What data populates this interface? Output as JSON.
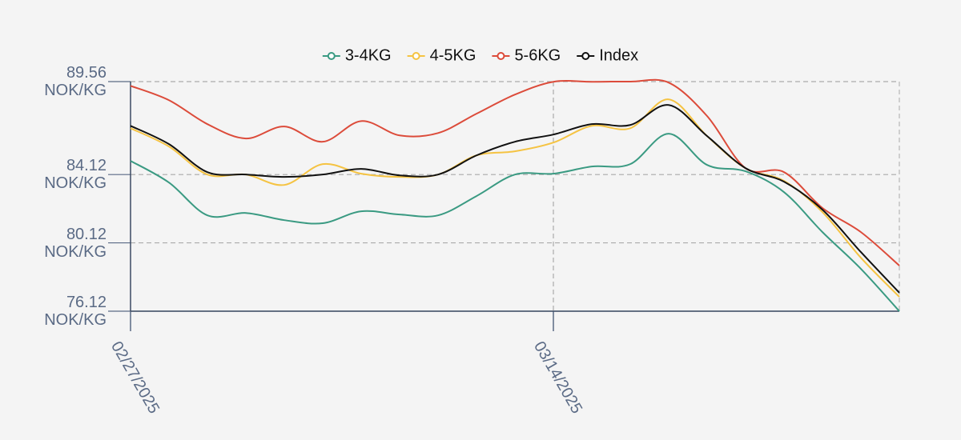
{
  "chart_data": {
    "type": "line",
    "categories": [
      "02/27/2025",
      null,
      null,
      null,
      null,
      null,
      null,
      null,
      null,
      null,
      null,
      "03/14/2025",
      null,
      null,
      null,
      null,
      null,
      null,
      null,
      null,
      null
    ],
    "series": [
      {
        "name": "3-4KG",
        "color": "#3a9a82",
        "values": [
          84.92,
          83.65,
          81.73,
          81.87,
          81.45,
          81.27,
          81.97,
          81.78,
          81.73,
          82.86,
          84.12,
          84.17,
          84.59,
          84.73,
          86.51,
          84.68,
          84.31,
          83.09,
          80.75,
          78.6,
          76.12
        ]
      },
      {
        "name": "4-5KG",
        "color": "#f5c342",
        "values": [
          86.83,
          85.76,
          84.12,
          84.12,
          83.51,
          84.73,
          84.17,
          83.98,
          84.12,
          85.24,
          85.48,
          85.99,
          86.97,
          86.83,
          88.52,
          86.37,
          84.49,
          83.75,
          81.92,
          79.25,
          76.96
        ]
      },
      {
        "name": "5-6KG",
        "color": "#dc4b3a",
        "values": [
          89.31,
          88.47,
          87.07,
          86.23,
          86.93,
          86.04,
          87.25,
          86.41,
          86.55,
          87.68,
          88.8,
          89.55,
          89.55,
          89.56,
          89.5,
          87.54,
          84.49,
          84.26,
          82.16,
          80.75,
          78.79
        ]
      },
      {
        "name": "Index",
        "color": "#111111",
        "values": [
          86.97,
          85.9,
          84.26,
          84.12,
          83.98,
          84.12,
          84.45,
          84.07,
          84.12,
          85.24,
          86.04,
          86.46,
          87.07,
          87.02,
          88.19,
          86.37,
          84.49,
          83.7,
          82.06,
          79.58,
          77.2
        ]
      }
    ],
    "ylim": [
      76.12,
      89.56
    ],
    "yticks": [
      {
        "value": 76.12,
        "label": "76.12\nNOK/KG"
      },
      {
        "value": 80.12,
        "label": "80.12\nNOK/KG"
      },
      {
        "value": 84.12,
        "label": "84.12\nNOK/KG"
      },
      {
        "value": 89.56,
        "label": "89.56\nNOK/KG"
      }
    ],
    "grid": true,
    "legend": "top"
  }
}
